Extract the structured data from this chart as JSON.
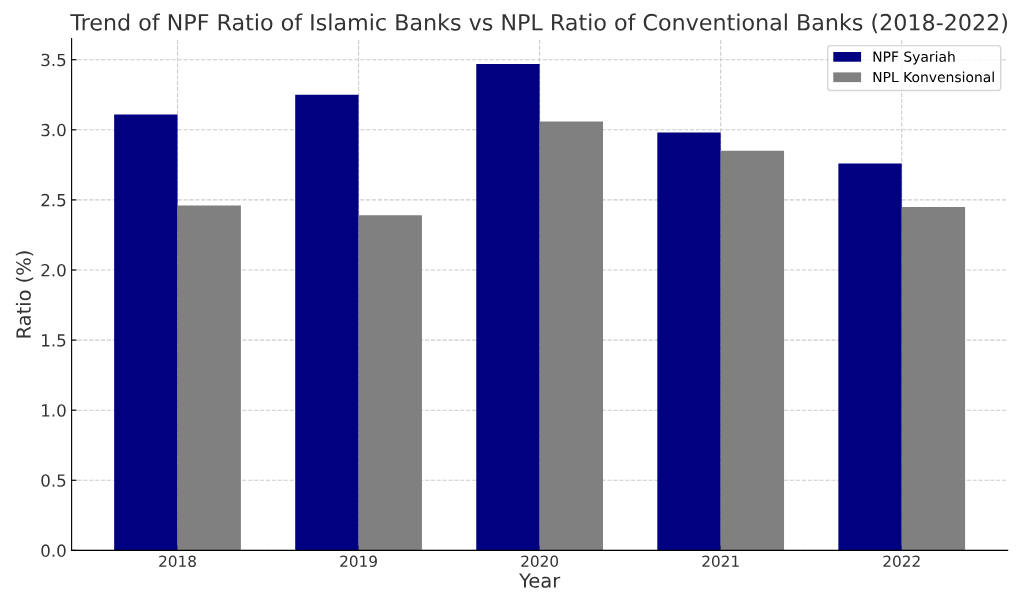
{
  "chart_data": {
    "type": "bar",
    "title": "Trend of NPF Ratio of Islamic Banks vs NPL Ratio of Conventional Banks (2018-2022)",
    "xlabel": "Year",
    "ylabel": "Ratio (%)",
    "categories": [
      "2018",
      "2019",
      "2020",
      "2021",
      "2022"
    ],
    "series": [
      {
        "name": "NPF Syariah",
        "color": "#000080",
        "values": [
          3.11,
          3.25,
          3.47,
          2.98,
          2.76
        ]
      },
      {
        "name": "NPL Konvensional",
        "color": "#808080",
        "values": [
          2.46,
          2.39,
          3.06,
          2.85,
          2.45
        ]
      }
    ],
    "ylim": [
      0,
      3.65
    ],
    "yticks": [
      {
        "value": 0,
        "label": "0.0"
      },
      {
        "value": 0.5,
        "label": "0.5"
      },
      {
        "value": 1,
        "label": "1.0"
      },
      {
        "value": 1.5,
        "label": "1.5"
      },
      {
        "value": 2,
        "label": "2.0"
      },
      {
        "value": 2.5,
        "label": "2.5"
      },
      {
        "value": 3,
        "label": "3.0"
      },
      {
        "value": 3.5,
        "label": "3.5"
      }
    ],
    "grid": true,
    "legend": "top right"
  }
}
